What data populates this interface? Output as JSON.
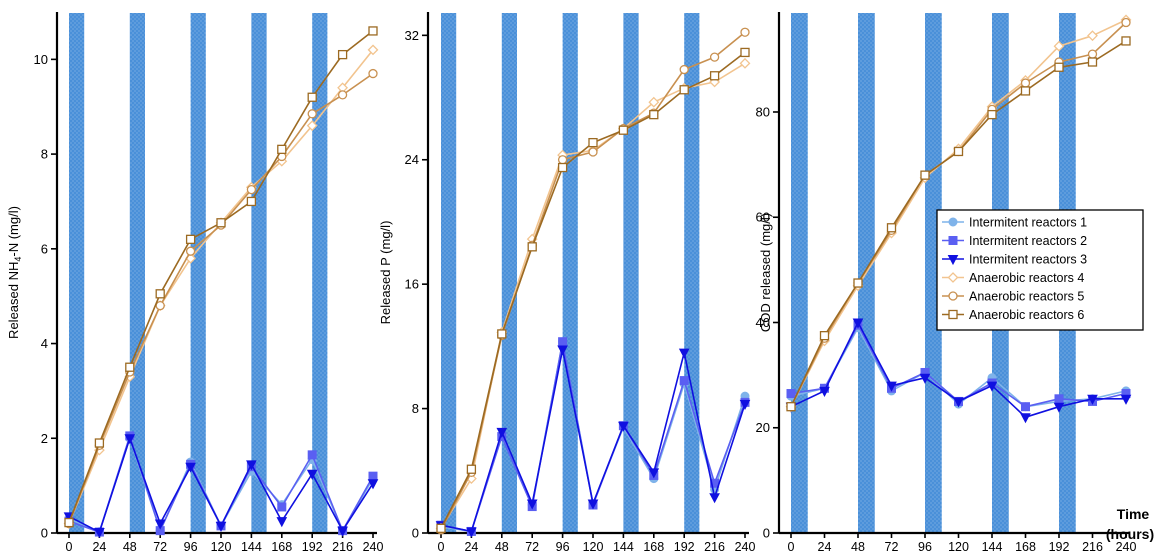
{
  "figure_label": {
    "line1": "Time",
    "line2": "(hours)"
  },
  "legend": {
    "entries": [
      {
        "series": 0,
        "label": "Intermitent reactors 1"
      },
      {
        "series": 1,
        "label": "Intermitent reactors 2"
      },
      {
        "series": 2,
        "label": "Intermitent reactors 3"
      },
      {
        "series": 3,
        "label": "Anaerobic reactors 4"
      },
      {
        "series": 4,
        "label": "Anaerobic reactors 5"
      },
      {
        "series": 5,
        "label": "Anaerobic reactors 6"
      }
    ]
  },
  "series_styles": [
    {
      "color": "#7fb3ea",
      "marker": "circle"
    },
    {
      "color": "#5a5ff2",
      "marker": "square"
    },
    {
      "color": "#1010e0",
      "marker": "triangle-down"
    },
    {
      "color": "#f2c48f",
      "marker": "diamond"
    },
    {
      "color": "#c89050",
      "marker": "circle-open"
    },
    {
      "color": "#9c6a22",
      "marker": "square-open"
    }
  ],
  "shade_color": "#4a90d9",
  "chart_data": [
    {
      "type": "line",
      "title": "",
      "xlabel": "",
      "ylabel": "Released NH4-N (mg/l)",
      "ylabel_main": "Released NH",
      "ylabel_sub": "4",
      "ylabel_rest": "-N (mg/l)",
      "xlim": [
        0,
        240
      ],
      "ylim": [
        0,
        11
      ],
      "xticks": [
        0,
        24,
        48,
        72,
        96,
        120,
        144,
        168,
        192,
        216,
        240
      ],
      "yticks": [
        0,
        2,
        4,
        6,
        8,
        10
      ],
      "shaded_intervals": [
        [
          0,
          12
        ],
        [
          48,
          60
        ],
        [
          96,
          108
        ],
        [
          144,
          156
        ],
        [
          192,
          204
        ]
      ],
      "x": [
        0,
        24,
        48,
        72,
        96,
        120,
        144,
        168,
        192,
        216,
        240
      ],
      "series": [
        {
          "name": "Intermitent reactors 1",
          "values": [
            0.3,
            0.03,
            2.0,
            0.05,
            1.5,
            0.15,
            1.3,
            0.6,
            1.55,
            0.05,
            1.15
          ]
        },
        {
          "name": "Intermitent reactors 2",
          "values": [
            0.25,
            0.02,
            2.05,
            0.05,
            1.45,
            0.15,
            1.4,
            0.55,
            1.65,
            0.05,
            1.2
          ]
        },
        {
          "name": "Intermitent reactors 3",
          "values": [
            0.35,
            0.02,
            2.0,
            0.2,
            1.4,
            0.15,
            1.45,
            0.25,
            1.25,
            0.05,
            1.05
          ]
        },
        {
          "name": "Anaerobic reactors 4",
          "values": [
            0.2,
            1.75,
            3.3,
            4.8,
            5.8,
            6.55,
            7.3,
            7.85,
            8.6,
            9.4,
            10.2
          ]
        },
        {
          "name": "Anaerobic reactors 5",
          "values": [
            0.2,
            1.85,
            3.4,
            4.8,
            5.95,
            6.5,
            7.25,
            7.95,
            8.85,
            9.25,
            9.7
          ]
        },
        {
          "name": "Anaerobic reactors 6",
          "values": [
            0.22,
            1.9,
            3.5,
            5.05,
            6.2,
            6.55,
            7.0,
            8.1,
            9.2,
            10.1,
            10.6
          ]
        }
      ]
    },
    {
      "type": "line",
      "title": "",
      "xlabel": "",
      "ylabel": "Released P (mg/l)",
      "xlim": [
        0,
        240
      ],
      "ylim": [
        0,
        33.5
      ],
      "xticks": [
        0,
        24,
        48,
        72,
        96,
        120,
        144,
        168,
        192,
        216,
        240
      ],
      "yticks": [
        0,
        8,
        16,
        24,
        32
      ],
      "shaded_intervals": [
        [
          0,
          12
        ],
        [
          48,
          60
        ],
        [
          96,
          108
        ],
        [
          144,
          156
        ],
        [
          192,
          204
        ]
      ],
      "x": [
        0,
        24,
        48,
        72,
        96,
        120,
        144,
        168,
        192,
        216,
        240
      ],
      "series": [
        {
          "name": "Intermitent reactors 1",
          "values": [
            0.4,
            0.1,
            6.3,
            1.8,
            12.3,
            1.9,
            6.8,
            3.5,
            9.6,
            2.8,
            8.8
          ]
        },
        {
          "name": "Intermitent reactors 2",
          "values": [
            0.5,
            0.1,
            6.2,
            1.7,
            12.3,
            1.8,
            6.9,
            3.7,
            9.8,
            3.2,
            8.4
          ]
        },
        {
          "name": "Intermitent reactors 3",
          "values": [
            0.5,
            0.1,
            6.5,
            1.9,
            11.8,
            1.9,
            6.9,
            3.9,
            11.6,
            2.3,
            8.3
          ]
        },
        {
          "name": "Anaerobic reactors 4",
          "values": [
            0.3,
            3.5,
            12.9,
            18.9,
            24.3,
            24.6,
            26.0,
            27.7,
            28.6,
            29.0,
            30.2
          ]
        },
        {
          "name": "Anaerobic reactors 5",
          "values": [
            0.2,
            3.9,
            12.7,
            18.5,
            24.0,
            24.5,
            26.0,
            27.0,
            29.8,
            30.6,
            32.2
          ]
        },
        {
          "name": "Anaerobic reactors 6",
          "values": [
            0.3,
            4.1,
            12.8,
            18.4,
            23.5,
            25.1,
            25.9,
            26.9,
            28.5,
            29.4,
            30.9
          ]
        }
      ]
    },
    {
      "type": "line",
      "title": "",
      "xlabel": "",
      "ylabel": "COD released (mg/l)",
      "xlim": [
        0,
        240
      ],
      "ylim": [
        0,
        99
      ],
      "xticks": [
        0,
        24,
        48,
        72,
        96,
        120,
        144,
        168,
        192,
        216,
        240
      ],
      "yticks": [
        0,
        20,
        40,
        60,
        80
      ],
      "shaded_intervals": [
        [
          0,
          12
        ],
        [
          48,
          60
        ],
        [
          96,
          108
        ],
        [
          144,
          156
        ],
        [
          192,
          204
        ]
      ],
      "x": [
        0,
        24,
        48,
        72,
        96,
        120,
        144,
        168,
        192,
        216,
        240
      ],
      "series": [
        {
          "name": "Intermitent reactors 1",
          "values": [
            26.0,
            27.5,
            39.0,
            27.0,
            30.5,
            24.5,
            29.5,
            24.0,
            25.0,
            25.5,
            27.0
          ]
        },
        {
          "name": "Intermitent reactors 2",
          "values": [
            26.5,
            27.5,
            39.5,
            27.5,
            30.5,
            25.0,
            28.5,
            24.0,
            25.5,
            25.0,
            26.5
          ]
        },
        {
          "name": "Intermitent reactors 3",
          "values": [
            24.0,
            27.0,
            40.0,
            28.0,
            29.5,
            25.0,
            28.0,
            22.0,
            24.0,
            25.5,
            25.5
          ]
        },
        {
          "name": "Anaerobic reactors 4",
          "values": [
            24.0,
            36.5,
            47.0,
            57.0,
            67.5,
            73.0,
            81.0,
            86.0,
            92.5,
            94.5,
            97.5
          ]
        },
        {
          "name": "Anaerobic reactors 5",
          "values": [
            24.0,
            37.0,
            47.5,
            57.5,
            68.0,
            72.5,
            80.5,
            85.5,
            89.5,
            91.0,
            97.0
          ]
        },
        {
          "name": "Anaerobic reactors 6",
          "values": [
            24.0,
            37.5,
            47.5,
            58.0,
            68.0,
            72.5,
            79.5,
            84.0,
            88.5,
            89.5,
            93.5
          ]
        }
      ]
    }
  ]
}
